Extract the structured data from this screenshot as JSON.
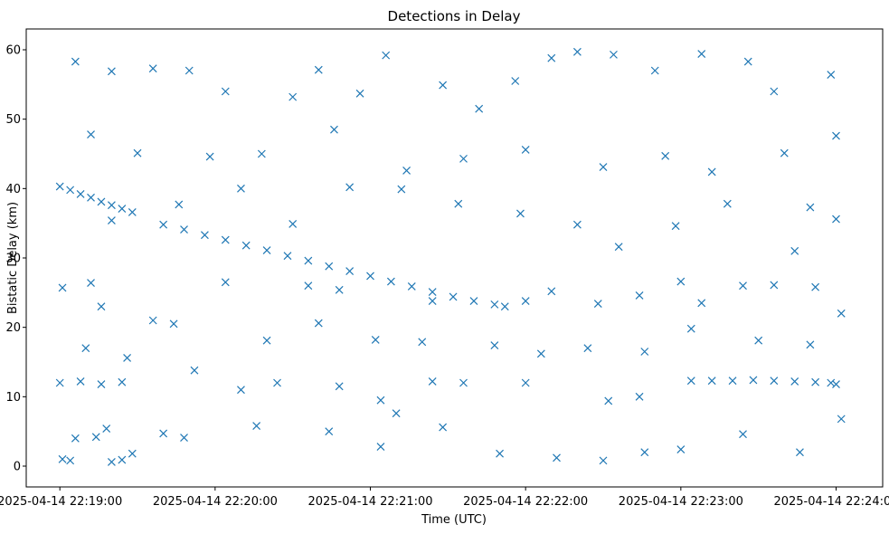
{
  "chart_data": {
    "type": "scatter",
    "title": "Detections in Delay",
    "xlabel": "Time (UTC)",
    "ylabel": "Bistatic Delay (km)",
    "marker": "x",
    "color": "#1f77b4",
    "grid": false,
    "xlim": [
      "2025-04-14 22:18:47",
      "2025-04-14 22:24:18"
    ],
    "ylim": [
      -3,
      63
    ],
    "x_ticks": [
      "2025-04-14 22:19:00",
      "2025-04-14 22:20:00",
      "2025-04-14 22:21:00",
      "2025-04-14 22:22:00",
      "2025-04-14 22:23:00",
      "2025-04-14 22:24:00"
    ],
    "y_ticks": [
      0,
      10,
      20,
      30,
      40,
      50,
      60
    ],
    "series": [
      {
        "values": [
          [
            "2025-04-14 22:19:00",
            40.3
          ],
          [
            "2025-04-14 22:19:04",
            39.8
          ],
          [
            "2025-04-14 22:19:08",
            39.2
          ],
          [
            "2025-04-14 22:19:12",
            38.7
          ],
          [
            "2025-04-14 22:19:16",
            38.1
          ],
          [
            "2025-04-14 22:19:20",
            37.6
          ],
          [
            "2025-04-14 22:19:24",
            37.1
          ],
          [
            "2025-04-14 22:19:28",
            36.6
          ],
          [
            "2025-04-14 22:19:40",
            34.8
          ],
          [
            "2025-04-14 22:19:48",
            34.1
          ],
          [
            "2025-04-14 22:19:56",
            33.3
          ],
          [
            "2025-04-14 22:20:04",
            32.6
          ],
          [
            "2025-04-14 22:20:12",
            31.8
          ],
          [
            "2025-04-14 22:20:20",
            31.1
          ],
          [
            "2025-04-14 22:20:28",
            30.3
          ],
          [
            "2025-04-14 22:20:36",
            29.6
          ],
          [
            "2025-04-14 22:20:44",
            28.8
          ],
          [
            "2025-04-14 22:20:52",
            28.1
          ],
          [
            "2025-04-14 22:21:00",
            27.4
          ],
          [
            "2025-04-14 22:21:08",
            26.6
          ],
          [
            "2025-04-14 22:21:16",
            25.9
          ],
          [
            "2025-04-14 22:21:24",
            25.1
          ],
          [
            "2025-04-14 22:21:32",
            24.4
          ],
          [
            "2025-04-14 22:21:40",
            23.8
          ],
          [
            "2025-04-14 22:21:48",
            23.3
          ],
          [
            "2025-04-14 22:21:52",
            23.0
          ],
          [
            "2025-04-14 22:19:00",
            12.0
          ],
          [
            "2025-04-14 22:19:08",
            12.2
          ],
          [
            "2025-04-14 22:19:16",
            11.8
          ],
          [
            "2025-04-14 22:19:24",
            12.1
          ],
          [
            "2025-04-14 22:20:10",
            11.0
          ],
          [
            "2025-04-14 22:20:24",
            12.0
          ],
          [
            "2025-04-14 22:20:48",
            11.5
          ],
          [
            "2025-04-14 22:21:04",
            9.5
          ],
          [
            "2025-04-14 22:21:10",
            7.6
          ],
          [
            "2025-04-14 22:21:24",
            12.2
          ],
          [
            "2025-04-14 22:21:36",
            12.0
          ],
          [
            "2025-04-14 22:22:00",
            12.0
          ],
          [
            "2025-04-14 22:22:32",
            9.4
          ],
          [
            "2025-04-14 22:22:44",
            10.0
          ],
          [
            "2025-04-14 22:23:04",
            12.3
          ],
          [
            "2025-04-14 22:23:12",
            12.3
          ],
          [
            "2025-04-14 22:23:20",
            12.3
          ],
          [
            "2025-04-14 22:23:28",
            12.4
          ],
          [
            "2025-04-14 22:23:36",
            12.3
          ],
          [
            "2025-04-14 22:23:44",
            12.2
          ],
          [
            "2025-04-14 22:23:52",
            12.1
          ],
          [
            "2025-04-14 22:23:58",
            12.0
          ],
          [
            "2025-04-14 22:24:00",
            11.8
          ],
          [
            "2025-04-14 22:19:01",
            1.0
          ],
          [
            "2025-04-14 22:19:04",
            0.8
          ],
          [
            "2025-04-14 22:19:20",
            0.6
          ],
          [
            "2025-04-14 22:19:24",
            0.9
          ],
          [
            "2025-04-14 22:19:28",
            1.8
          ],
          [
            "2025-04-14 22:19:06",
            4.0
          ],
          [
            "2025-04-14 22:19:14",
            4.2
          ],
          [
            "2025-04-14 22:19:40",
            4.7
          ],
          [
            "2025-04-14 22:19:01",
            25.7
          ],
          [
            "2025-04-14 22:19:12",
            26.4
          ],
          [
            "2025-04-14 22:19:16",
            23.0
          ],
          [
            "2025-04-14 22:19:36",
            21.0
          ],
          [
            "2025-04-14 22:19:44",
            20.5
          ],
          [
            "2025-04-14 22:20:04",
            26.5
          ],
          [
            "2025-04-14 22:20:36",
            26.0
          ],
          [
            "2025-04-14 22:20:48",
            25.4
          ],
          [
            "2025-04-14 22:21:24",
            23.8
          ],
          [
            "2025-04-14 22:22:00",
            23.8
          ],
          [
            "2025-04-14 22:22:10",
            25.2
          ],
          [
            "2025-04-14 22:22:28",
            23.4
          ],
          [
            "2025-04-14 22:22:44",
            24.6
          ],
          [
            "2025-04-14 22:23:00",
            26.6
          ],
          [
            "2025-04-14 22:23:08",
            23.5
          ],
          [
            "2025-04-14 22:23:24",
            26.0
          ],
          [
            "2025-04-14 22:23:36",
            26.1
          ],
          [
            "2025-04-14 22:23:44",
            31.0
          ],
          [
            "2025-04-14 22:23:52",
            25.8
          ],
          [
            "2025-04-14 22:19:06",
            58.3
          ],
          [
            "2025-04-14 22:19:20",
            56.9
          ],
          [
            "2025-04-14 22:19:36",
            57.3
          ],
          [
            "2025-04-14 22:19:50",
            57.0
          ],
          [
            "2025-04-14 22:20:04",
            54.0
          ],
          [
            "2025-04-14 22:20:30",
            53.2
          ],
          [
            "2025-04-14 22:20:40",
            57.1
          ],
          [
            "2025-04-14 22:20:56",
            53.7
          ],
          [
            "2025-04-14 22:21:06",
            59.2
          ],
          [
            "2025-04-14 22:21:28",
            54.9
          ],
          [
            "2025-04-14 22:21:42",
            51.5
          ],
          [
            "2025-04-14 22:21:56",
            55.5
          ],
          [
            "2025-04-14 22:22:10",
            58.8
          ],
          [
            "2025-04-14 22:22:20",
            59.7
          ],
          [
            "2025-04-14 22:22:34",
            59.3
          ],
          [
            "2025-04-14 22:22:50",
            57.0
          ],
          [
            "2025-04-14 22:23:08",
            59.4
          ],
          [
            "2025-04-14 22:23:26",
            58.3
          ],
          [
            "2025-04-14 22:23:36",
            54.0
          ],
          [
            "2025-04-14 22:23:58",
            56.4
          ],
          [
            "2025-04-14 22:19:12",
            47.8
          ],
          [
            "2025-04-14 22:19:30",
            45.1
          ],
          [
            "2025-04-14 22:19:58",
            44.6
          ],
          [
            "2025-04-14 22:20:18",
            45.0
          ],
          [
            "2025-04-14 22:20:46",
            48.5
          ],
          [
            "2025-04-14 22:21:14",
            42.6
          ],
          [
            "2025-04-14 22:21:36",
            44.3
          ],
          [
            "2025-04-14 22:22:00",
            45.6
          ],
          [
            "2025-04-14 22:22:30",
            43.1
          ],
          [
            "2025-04-14 22:22:54",
            44.7
          ],
          [
            "2025-04-14 22:23:12",
            42.4
          ],
          [
            "2025-04-14 22:23:40",
            45.1
          ],
          [
            "2025-04-14 22:24:00",
            47.6
          ],
          [
            "2025-04-14 22:19:10",
            17.0
          ],
          [
            "2025-04-14 22:19:26",
            15.6
          ],
          [
            "2025-04-14 22:19:52",
            13.8
          ],
          [
            "2025-04-14 22:20:20",
            18.1
          ],
          [
            "2025-04-14 22:20:40",
            20.6
          ],
          [
            "2025-04-14 22:21:02",
            18.2
          ],
          [
            "2025-04-14 22:21:20",
            17.9
          ],
          [
            "2025-04-14 22:21:48",
            17.4
          ],
          [
            "2025-04-14 22:22:06",
            16.2
          ],
          [
            "2025-04-14 22:22:24",
            17.0
          ],
          [
            "2025-04-14 22:22:46",
            16.5
          ],
          [
            "2025-04-14 22:23:04",
            19.8
          ],
          [
            "2025-04-14 22:23:30",
            18.1
          ],
          [
            "2025-04-14 22:23:50",
            17.5
          ],
          [
            "2025-04-14 22:24:02",
            22.0
          ],
          [
            "2025-04-14 22:19:18",
            5.4
          ],
          [
            "2025-04-14 22:19:48",
            4.1
          ],
          [
            "2025-04-14 22:20:16",
            5.8
          ],
          [
            "2025-04-14 22:20:44",
            5.0
          ],
          [
            "2025-04-14 22:21:04",
            2.8
          ],
          [
            "2025-04-14 22:21:28",
            5.6
          ],
          [
            "2025-04-14 22:21:50",
            1.8
          ],
          [
            "2025-04-14 22:22:12",
            1.2
          ],
          [
            "2025-04-14 22:22:30",
            0.8
          ],
          [
            "2025-04-14 22:22:46",
            2.0
          ],
          [
            "2025-04-14 22:23:00",
            2.4
          ],
          [
            "2025-04-14 22:23:24",
            4.6
          ],
          [
            "2025-04-14 22:23:46",
            2.0
          ],
          [
            "2025-04-14 22:24:02",
            6.8
          ],
          [
            "2025-04-14 22:19:20",
            35.4
          ],
          [
            "2025-04-14 22:19:46",
            37.7
          ],
          [
            "2025-04-14 22:20:10",
            40.0
          ],
          [
            "2025-04-14 22:20:30",
            34.9
          ],
          [
            "2025-04-14 22:20:52",
            40.2
          ],
          [
            "2025-04-14 22:21:12",
            39.9
          ],
          [
            "2025-04-14 22:21:34",
            37.8
          ],
          [
            "2025-04-14 22:21:58",
            36.4
          ],
          [
            "2025-04-14 22:22:20",
            34.8
          ],
          [
            "2025-04-14 22:22:36",
            31.6
          ],
          [
            "2025-04-14 22:22:58",
            34.6
          ],
          [
            "2025-04-14 22:23:18",
            37.8
          ],
          [
            "2025-04-14 22:23:50",
            37.3
          ],
          [
            "2025-04-14 22:24:00",
            35.6
          ]
        ]
      }
    ]
  }
}
